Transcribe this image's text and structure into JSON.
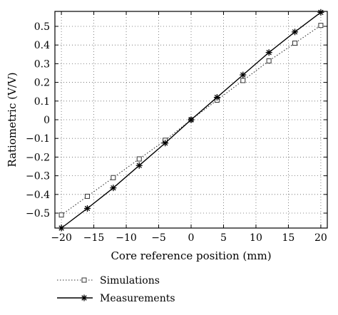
{
  "chart_data": {
    "type": "line",
    "title": "",
    "xlabel": "Core reference position (mm)",
    "ylabel": "Ratiometric (V/V)",
    "xlim": [
      -21,
      21
    ],
    "ylim": [
      -0.58,
      0.58
    ],
    "xticks": [
      -20,
      -15,
      -10,
      -5,
      0,
      5,
      10,
      15,
      20
    ],
    "yticks": [
      -0.5,
      -0.4,
      -0.3,
      -0.2,
      -0.1,
      0,
      0.1,
      0.2,
      0.3,
      0.4,
      0.5
    ],
    "xtick_labels": [
      "−20",
      "−15",
      "−10",
      "−5",
      "0",
      "5",
      "10",
      "15",
      "20"
    ],
    "ytick_labels": [
      "−0.5",
      "−0.4",
      "−0.3",
      "−0.2",
      "−0.1",
      "0",
      "0.1",
      "0.2",
      "0.3",
      "0.4",
      "0.5"
    ],
    "grid": true,
    "legend_position": "below-left",
    "series": [
      {
        "name": "Simulations",
        "style": "dotted",
        "marker": "square",
        "color": "#333333",
        "x": [
          -20,
          -16,
          -12,
          -8,
          -4,
          0,
          4,
          8,
          12,
          16,
          20
        ],
        "y": [
          -0.51,
          -0.41,
          -0.31,
          -0.21,
          -0.11,
          0.0,
          0.105,
          0.21,
          0.315,
          0.41,
          0.505
        ]
      },
      {
        "name": "Measurements",
        "style": "solid",
        "marker": "star",
        "color": "#000000",
        "x": [
          -20,
          -16,
          -12,
          -8,
          -4,
          0,
          4,
          8,
          12,
          16,
          20
        ],
        "y": [
          -0.58,
          -0.475,
          -0.365,
          -0.245,
          -0.125,
          0.0,
          0.12,
          0.24,
          0.36,
          0.47,
          0.575
        ]
      }
    ]
  }
}
